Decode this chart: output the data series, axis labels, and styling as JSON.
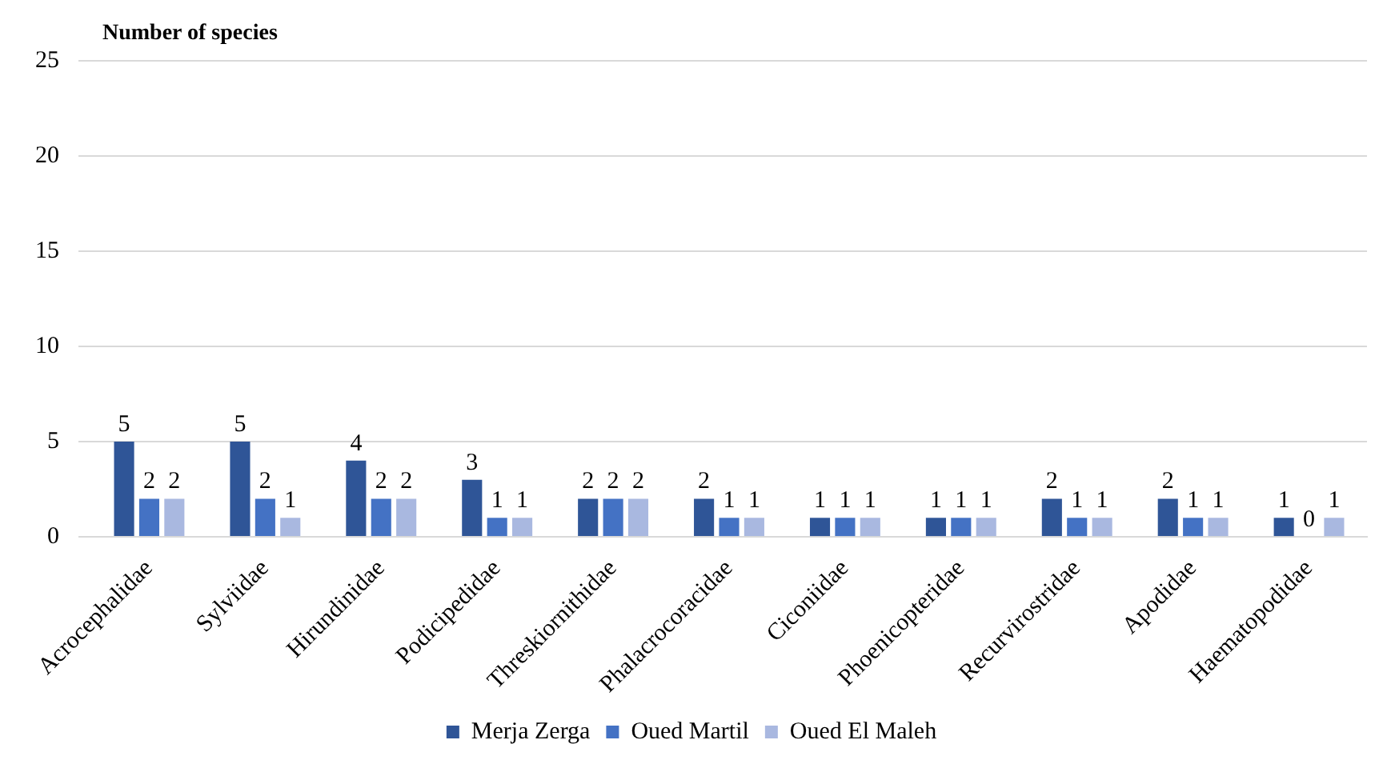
{
  "chart_data": {
    "type": "bar",
    "ylabel": "Number of species",
    "categories": [
      "Acrocephalidae",
      "Sylviidae",
      "Hirundinidae",
      "Podicipedidae",
      "Threskiornithidae",
      "Phalacrocoracidae",
      "Ciconiidae",
      "Phoenicopteridae",
      "Recurvirostridae",
      "Apodidae",
      "Haematopodidae"
    ],
    "series": [
      {
        "name": "Merja Zerga",
        "color": "#2f5597",
        "values": [
          5,
          5,
          4,
          3,
          2,
          2,
          1,
          1,
          2,
          2,
          1
        ]
      },
      {
        "name": "Oued Martil",
        "color": "#4472c4",
        "values": [
          2,
          2,
          2,
          1,
          2,
          1,
          1,
          1,
          1,
          1,
          0
        ]
      },
      {
        "name": "Oued El Maleh",
        "color": "#a9b8e0",
        "values": [
          2,
          1,
          2,
          1,
          2,
          1,
          1,
          1,
          1,
          1,
          1
        ]
      }
    ],
    "ylim": [
      0,
      25
    ],
    "yticks": [
      0,
      5,
      10,
      15,
      20,
      25
    ],
    "grid": "y",
    "legend": "bottom",
    "data_labels": true
  }
}
